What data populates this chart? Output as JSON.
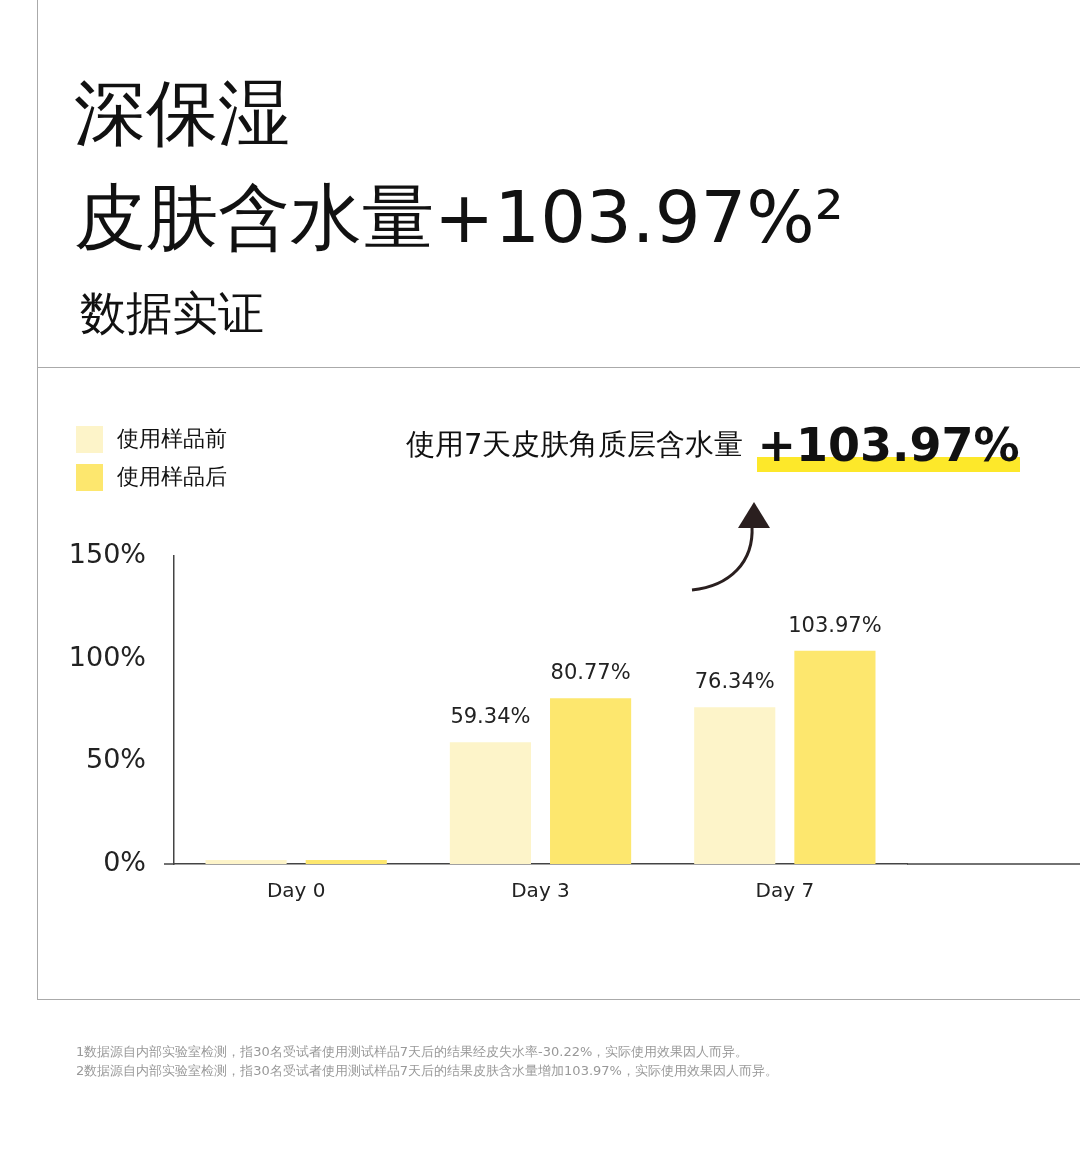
{
  "chart_data": {
    "type": "bar",
    "title": "深保湿",
    "subtitle": "皮肤含水量+103.97%²",
    "annotations": [
      "数据实证",
      "使用7天皮肤角质层含水量",
      "+103.97%",
      "1数据源自内部实验室检测，指30名受试者使用测试样品7天后的结果经皮失水率-30.22%，实际使用效果因人而异。",
      "2数据源自内部实验室检测，指30名受试者使用测试样品7天后的结果皮肤含水量增加103.97%，实际使用效果因人而异。"
    ],
    "categories": [
      "Day 0",
      "Day 3",
      "Day 7"
    ],
    "series": [
      {
        "name": "使用样品前",
        "color": "#fdf4c9",
        "values": [
          2,
          59.34,
          76.34
        ],
        "value_labels": [
          null,
          "59.34%",
          "76.34%"
        ]
      },
      {
        "name": "使用样品后",
        "color": "#fde76e",
        "values": [
          2,
          80.77,
          103.97
        ],
        "value_labels": [
          null,
          "80.77%",
          "103.97%"
        ]
      }
    ],
    "ylim": [
      0,
      150
    ],
    "yticks": [
      {
        "value": 0,
        "label": "0%"
      },
      {
        "value": 50,
        "label": "50%"
      },
      {
        "value": 100,
        "label": "100%"
      },
      {
        "value": 150,
        "label": "150%"
      }
    ],
    "grid": false,
    "legend": "top left"
  }
}
